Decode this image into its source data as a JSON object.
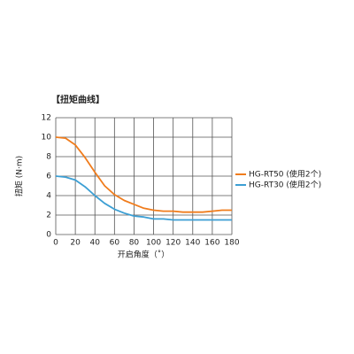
{
  "chart_data": {
    "type": "line",
    "title": "【扭矩曲线】",
    "x_label": "开启角度（˚）",
    "y_label": "扭矩 (N·m)",
    "x": [
      0,
      10,
      20,
      30,
      40,
      50,
      60,
      70,
      80,
      90,
      100,
      110,
      120,
      130,
      140,
      150,
      160,
      170,
      180
    ],
    "series": [
      {
        "name": "HG-RT50 (使用2个)",
        "color": "#f07c1c",
        "values": [
          10,
          9.9,
          9.2,
          7.9,
          6.4,
          5.0,
          4.1,
          3.5,
          3.1,
          2.7,
          2.5,
          2.4,
          2.4,
          2.3,
          2.3,
          2.3,
          2.4,
          2.5,
          2.5
        ]
      },
      {
        "name": "HG-RT30 (使用2个)",
        "color": "#3c9fd4",
        "values": [
          6,
          5.9,
          5.6,
          4.9,
          4.0,
          3.2,
          2.6,
          2.2,
          1.9,
          1.8,
          1.6,
          1.6,
          1.5,
          1.5,
          1.5,
          1.5,
          1.5,
          1.5,
          1.5
        ]
      }
    ],
    "xlim": [
      0,
      180
    ],
    "xticks": [
      0,
      20,
      40,
      60,
      80,
      100,
      120,
      140,
      160,
      180
    ],
    "ylim": [
      0,
      12
    ],
    "yticks": [
      0,
      2,
      4,
      6,
      8,
      10,
      12
    ],
    "grid": true,
    "legend": "right"
  }
}
